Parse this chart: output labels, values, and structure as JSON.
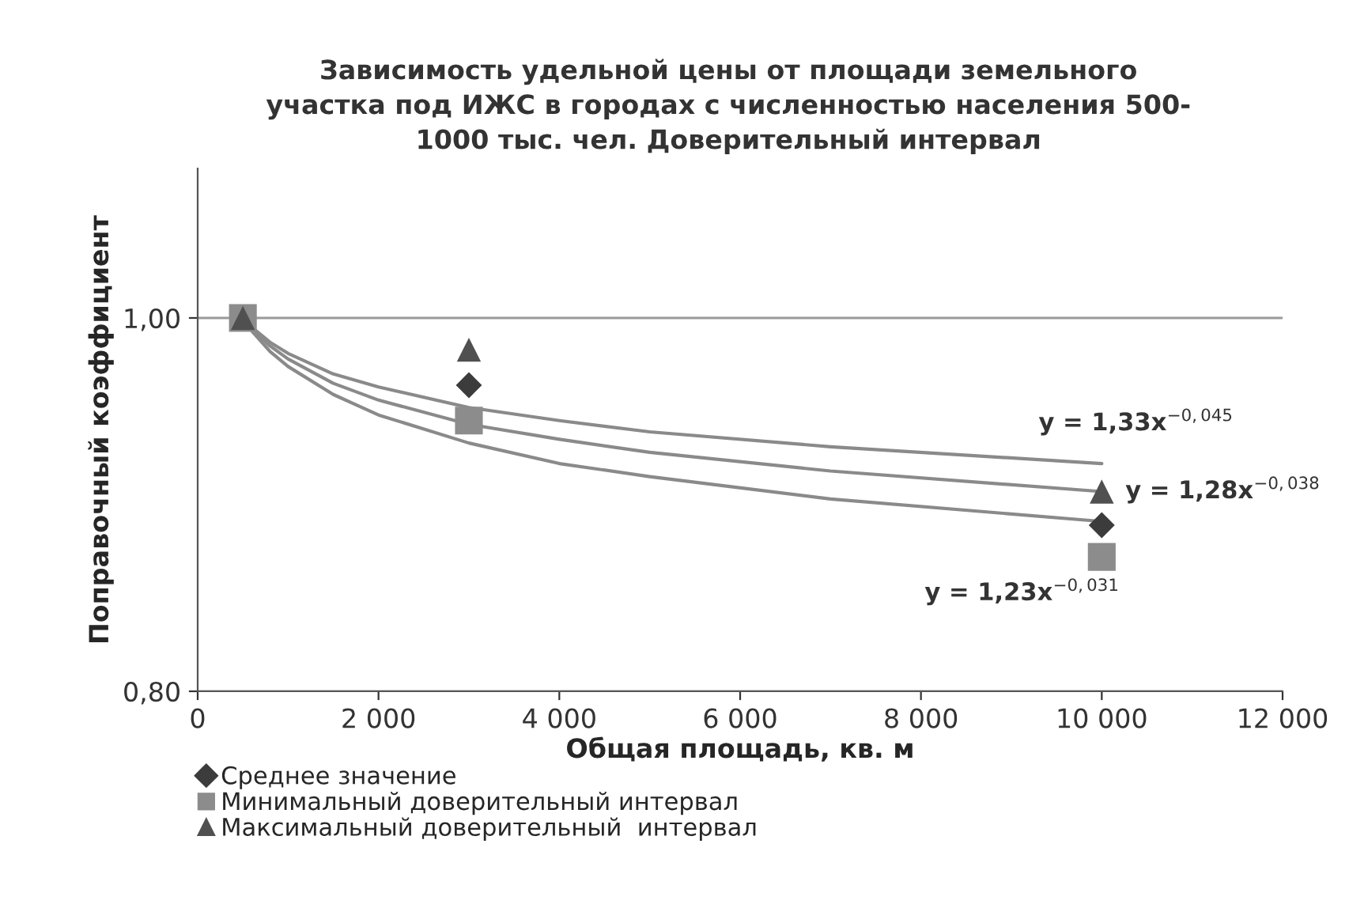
{
  "chart_data": {
    "type": "scatter",
    "title": "Зависимость удельной цены от площади земельного\nучастка под ИЖС в городах с численностью населения 500-\n1000 тыс. чел. Доверительный интервал",
    "xlabel": "Общая площадь, кв. м",
    "ylabel": "Поправочный коэффициент",
    "x": [
      500,
      3000,
      10000
    ],
    "series": [
      {
        "name": "Среднее значение",
        "color": "#3c3c3c",
        "marker": "diamond",
        "values": [
          null,
          0.964,
          0.889
        ]
      },
      {
        "name": "Минимальный доверительный интервал",
        "color": "#8c8c8c",
        "marker": "square",
        "values": [
          1.0,
          0.945,
          0.872
        ]
      },
      {
        "name": "Максимальный доверительный  интервал",
        "color": "#505050",
        "marker": "triangle",
        "values": [
          1.0,
          0.983,
          0.907
        ]
      },
      {
        "type": "line",
        "color": "#8a8a8a",
        "x": [
          500,
          600,
          800,
          1000,
          1500,
          2000,
          3000,
          4000,
          5000,
          7000,
          10000
        ],
        "values": [
          1.0,
          0.995,
          0.987,
          0.981,
          0.97,
          0.963,
          0.952,
          0.945,
          0.939,
          0.931,
          0.922
        ]
      },
      {
        "type": "line",
        "color": "#8a8a8a",
        "x": [
          500,
          600,
          800,
          1000,
          1500,
          2000,
          3000,
          4000,
          5000,
          7000,
          10000
        ],
        "values": [
          1.0,
          0.994,
          0.985,
          0.978,
          0.965,
          0.956,
          0.943,
          0.935,
          0.928,
          0.918,
          0.907
        ]
      },
      {
        "type": "line",
        "color": "#8a8a8a",
        "x": [
          500,
          600,
          800,
          1000,
          1500,
          2000,
          3000,
          4000,
          5000,
          7000,
          10000
        ],
        "values": [
          1.0,
          0.993,
          0.982,
          0.974,
          0.959,
          0.948,
          0.933,
          0.922,
          0.915,
          0.903,
          0.891
        ]
      }
    ],
    "annotations": [
      "y = 1,33x$^{−0,045}$",
      "y = 1,28x$^{−0,038}$",
      "y = 1,23x$^{−0,031}$"
    ],
    "xlim": [
      0,
      12000
    ],
    "xticks": [
      0,
      {
        "value": 2000,
        "label": "2 000"
      },
      {
        "value": 4000,
        "label": "4 000"
      },
      {
        "value": 6000,
        "label": "6 000"
      },
      {
        "value": 8000,
        "label": "8 000"
      },
      {
        "value": 10000,
        "label": "10 000"
      },
      {
        "value": 12000,
        "label": "12 000"
      }
    ],
    "ylim": [
      0.8,
      1.08
    ],
    "yticks": [
      {
        "value": 0.8,
        "label": "0,80"
      },
      {
        "value": 1.0,
        "label": "1,00"
      }
    ],
    "grid": "y",
    "legend": "bottom"
  }
}
